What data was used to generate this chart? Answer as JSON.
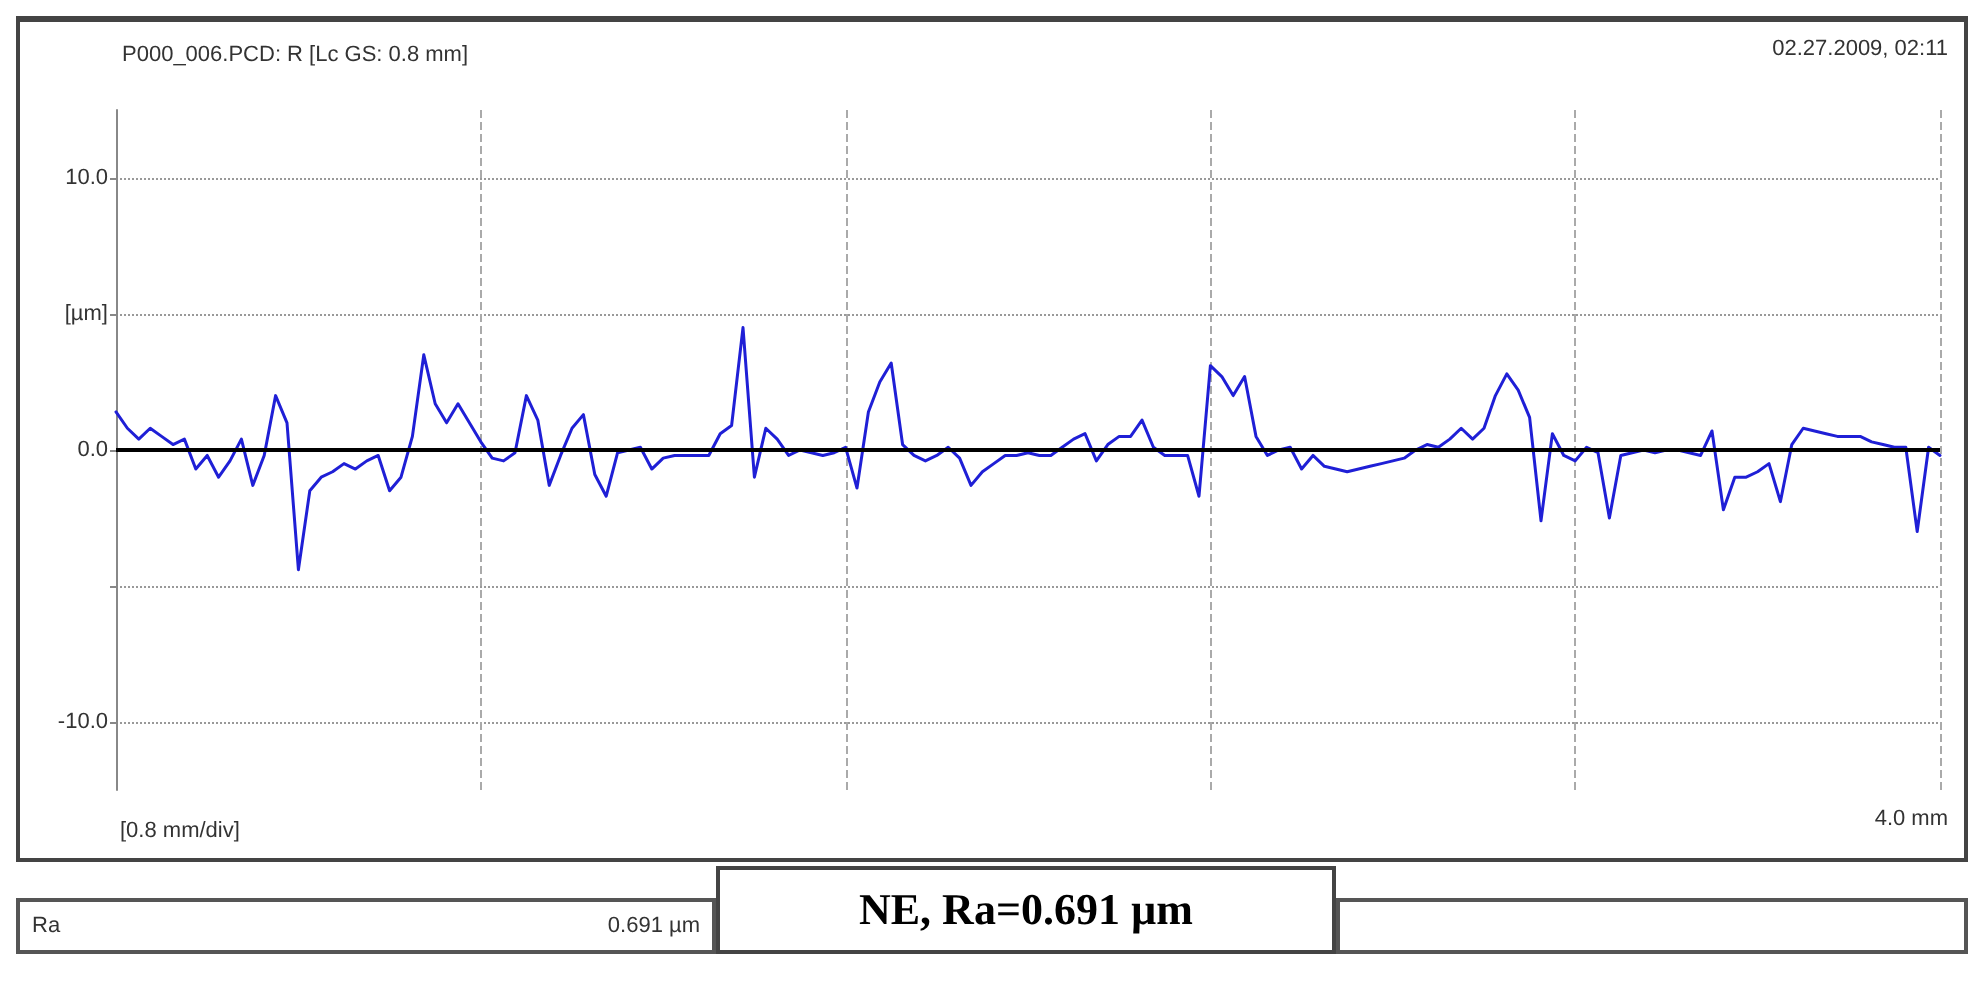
{
  "chart_data": {
    "type": "line",
    "title": "P000_006.PCD: R [Lc GS: 0.8 mm]",
    "xlabel": "[0.8 mm/div]",
    "annotations": [
      "02.27.2009, 02:11",
      "Ra",
      "0.691 µm",
      "NE, Ra=0.691 µm",
      "4.0 mm"
    ],
    "ylim": [
      -12.5,
      12.5
    ],
    "yticks": [
      {
        "value": -10,
        "label": "-10.0"
      },
      {
        "value": -5,
        "label": null
      },
      {
        "value": 0,
        "label": "0.0"
      },
      {
        "value": 5,
        "label": "[µm]"
      },
      {
        "value": 10,
        "label": "10.0"
      }
    ],
    "grid": true,
    "marker": "none",
    "line_style": "solid",
    "ref_lines": [
      {
        "axis": "y",
        "value": 0,
        "color": "#000000"
      }
    ],
    "categories": [
      null,
      null,
      null,
      null,
      null,
      null,
      null,
      null,
      null,
      null,
      null,
      null,
      null,
      null,
      null,
      null,
      null,
      null,
      null,
      null,
      null,
      null,
      null,
      null,
      null,
      null,
      null,
      null,
      null,
      null,
      null,
      null,
      null,
      null,
      null,
      null,
      null,
      null,
      null,
      null,
      null,
      null,
      null,
      null,
      null,
      null,
      null,
      null,
      null,
      null,
      null,
      null,
      null,
      null,
      null,
      null,
      null,
      null,
      null,
      null,
      null,
      null,
      null,
      null,
      null,
      null,
      null,
      null,
      null,
      null,
      null,
      null,
      null,
      null,
      null,
      null,
      null,
      null,
      null,
      null,
      null,
      null,
      null,
      null,
      null,
      null,
      null,
      null,
      null,
      null,
      null,
      null,
      null,
      null,
      null,
      null,
      null,
      null,
      null,
      null,
      null,
      null,
      null,
      null,
      null,
      null,
      null,
      null,
      null,
      null,
      null,
      null,
      null,
      null,
      null,
      null,
      null,
      null,
      null,
      null,
      null,
      null,
      null,
      null,
      null,
      null,
      null,
      null,
      null,
      null,
      null,
      null,
      null,
      null,
      null,
      null,
      null,
      null,
      null,
      null,
      null,
      null,
      null,
      null,
      null,
      null,
      null,
      null,
      null,
      null,
      null,
      null,
      null,
      null,
      null,
      null,
      null,
      null,
      null,
      null,
      null
    ],
    "series": [
      {
        "color": "#1f1fd6",
        "values": [
          1.4,
          0.8,
          0.4,
          0.8,
          0.5,
          0.2,
          0.4,
          -0.7,
          -0.2,
          -1.0,
          -0.4,
          0.4,
          -1.3,
          -0.2,
          2.0,
          1.0,
          -4.4,
          -1.5,
          -1.0,
          -0.8,
          -0.5,
          -0.7,
          -0.4,
          -0.2,
          -1.5,
          -1.0,
          0.5,
          3.5,
          1.7,
          1.0,
          1.7,
          1.0,
          0.3,
          -0.3,
          -0.4,
          -0.1,
          2.0,
          1.1,
          -1.3,
          -0.2,
          0.8,
          1.3,
          -0.9,
          -1.7,
          -0.1,
          0.0,
          0.1,
          -0.7,
          -0.3,
          -0.2,
          -0.2,
          -0.2,
          -0.2,
          0.6,
          0.9,
          4.5,
          -1.0,
          0.8,
          0.4,
          -0.2,
          0.0,
          -0.1,
          -0.2,
          -0.1,
          0.1,
          -1.4,
          1.4,
          2.5,
          3.2,
          0.2,
          -0.2,
          -0.4,
          -0.2,
          0.1,
          -0.3,
          -1.3,
          -0.8,
          -0.5,
          -0.2,
          -0.2,
          -0.1,
          -0.2,
          -0.2,
          0.1,
          0.4,
          0.6,
          -0.4,
          0.2,
          0.5,
          0.5,
          1.1,
          0.1,
          -0.2,
          -0.2,
          -0.2,
          -1.7,
          3.1,
          2.7,
          2.0,
          2.7,
          0.5,
          -0.2,
          0.0,
          0.1,
          -0.7,
          -0.2,
          -0.6,
          -0.7,
          -0.8,
          -0.7,
          -0.6,
          -0.5,
          -0.4,
          -0.3,
          0.0,
          0.2,
          0.1,
          0.4,
          0.8,
          0.4,
          0.8,
          2.0,
          2.8,
          2.2,
          1.2,
          -2.6,
          0.6,
          -0.2,
          -0.4,
          0.1,
          -0.1,
          -2.5,
          -0.2,
          -0.1,
          0.0,
          -0.1,
          0.0,
          0.0,
          -0.1,
          -0.2,
          0.7,
          -2.2,
          -1.0,
          -1.0,
          -0.8,
          -0.5,
          -1.9,
          0.2,
          0.8,
          0.7,
          0.6,
          0.5,
          0.5,
          0.5,
          0.3,
          0.2,
          0.1,
          0.1,
          -3.0,
          0.1,
          -0.2
        ]
      }
    ]
  }
}
